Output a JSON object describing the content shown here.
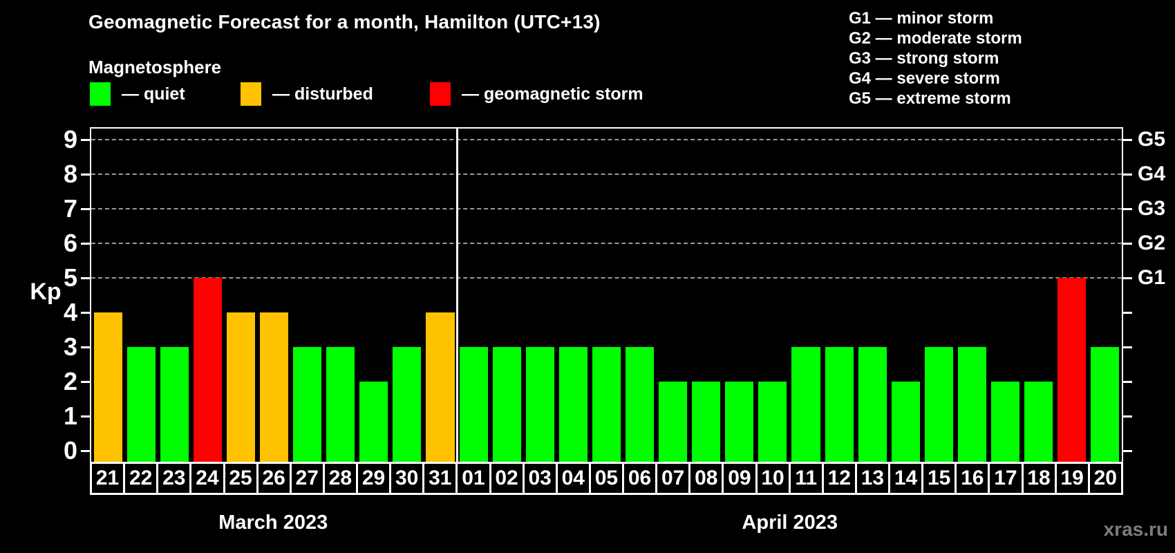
{
  "title": "Geomagnetic Forecast for a month, Hamilton (UTC+13)",
  "subtitle": "Magnetosphere",
  "legend": {
    "quiet_label": "— quiet",
    "disturbed_label": "— disturbed",
    "storm_label": "— geomagnetic storm"
  },
  "g_legend": [
    "G1 — minor storm",
    "G2 — moderate storm",
    "G3 — strong storm",
    "G4 — severe storm",
    "G5 — extreme storm"
  ],
  "axis": {
    "y_label": "Kp",
    "y_ticks": [
      0,
      1,
      2,
      3,
      4,
      5,
      6,
      7,
      8,
      9
    ],
    "right_g_labels": {
      "5": "G1",
      "6": "G2",
      "7": "G3",
      "8": "G4",
      "9": "G5"
    }
  },
  "colors": {
    "quiet": "#00ff00",
    "disturbed": "#ffc200",
    "storm": "#ff0000",
    "grid": "#9a9a9a"
  },
  "watermark": "xras.ru",
  "chart_data": {
    "type": "bar",
    "title": "Geomagnetic Forecast for a month, Hamilton (UTC+13)",
    "xlabel": "",
    "ylabel": "Kp",
    "ylim": [
      0,
      9.4
    ],
    "grid": "dashed horizontal at Kp 5-9 (G1-G5), legend top, right axis G-scale",
    "gridlines_at": [
      5,
      6,
      7,
      8,
      9
    ],
    "categories": [
      "21",
      "22",
      "23",
      "24",
      "25",
      "26",
      "27",
      "28",
      "29",
      "30",
      "31",
      "01",
      "02",
      "03",
      "04",
      "05",
      "06",
      "07",
      "08",
      "09",
      "10",
      "11",
      "12",
      "13",
      "14",
      "15",
      "16",
      "17",
      "18",
      "19",
      "20"
    ],
    "months": [
      {
        "label": "March 2023",
        "days": 11
      },
      {
        "label": "April 2023",
        "days": 20
      }
    ],
    "series": [
      {
        "name": "Kp forecast",
        "values": [
          4,
          3,
          3,
          5,
          4,
          4,
          3,
          3,
          2,
          3,
          4,
          3,
          3,
          3,
          3,
          3,
          3,
          2,
          2,
          2,
          2,
          3,
          3,
          3,
          2,
          3,
          3,
          2,
          2,
          5,
          3
        ]
      }
    ],
    "status_rule": {
      "quiet": "Kp<4",
      "disturbed": "Kp=4",
      "storm": "Kp>=5"
    }
  }
}
